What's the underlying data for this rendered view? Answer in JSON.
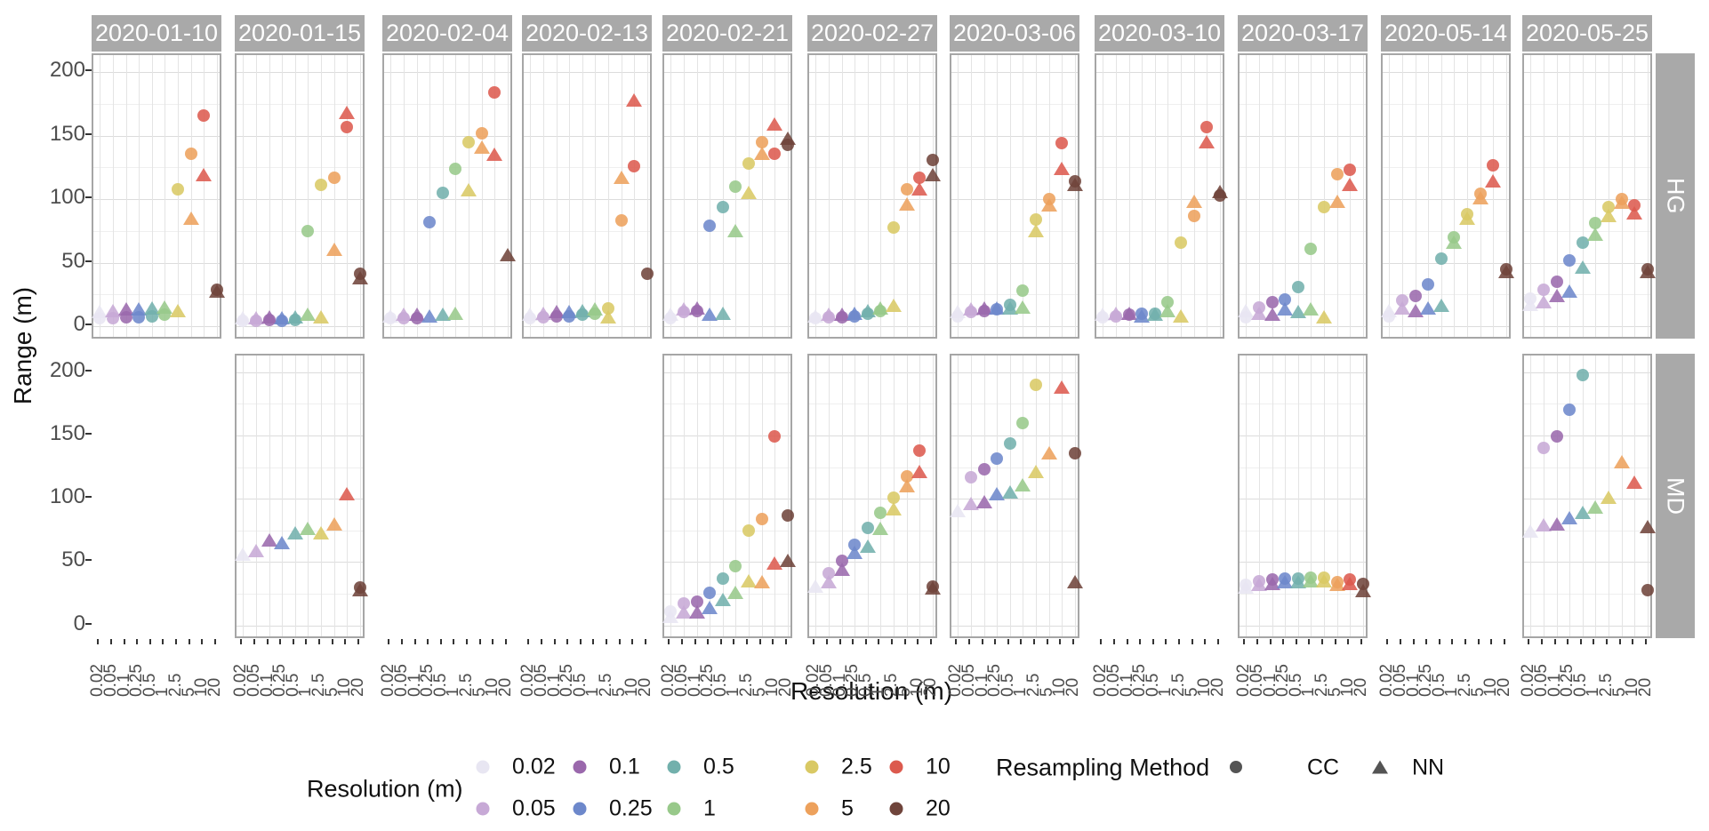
{
  "chart_data": {
    "type": "scatter",
    "x_axis": {
      "label": "Resolution (m)",
      "categories": [
        "0.02",
        "0.05",
        "0.1",
        "0.25",
        "0.5",
        "1",
        "2.5",
        "5",
        "10",
        "20"
      ]
    },
    "y_axis": {
      "label": "Range (m)",
      "ticks": [
        0,
        50,
        100,
        150,
        200
      ],
      "min": 0,
      "max": 210,
      "minor_step": 25,
      "grid": true
    },
    "row_facets": [
      "HG",
      "MD"
    ],
    "col_facets": [
      "2020-01-10",
      "2020-01-15",
      "2020-02-04",
      "2020-02-13",
      "2020-02-21",
      "2020-02-27",
      "2020-03-06",
      "2020-03-10",
      "2020-03-17",
      "2020-05-14",
      "2020-05-25"
    ],
    "resolution_colors": {
      "0.02": "#e8e6f2",
      "0.05": "#c7a9d6",
      "0.1": "#9a68ac",
      "0.25": "#6d88cb",
      "0.5": "#72b0ac",
      "1": "#98c98a",
      "2.5": "#d9c964",
      "5": "#eda15c",
      "10": "#dc5a4e",
      "20": "#6f443b"
    },
    "legend": {
      "resolution_title": "Resolution (m)",
      "resolution_items": [
        "0.02",
        "0.05",
        "0.1",
        "0.25",
        "0.5",
        "1",
        "2.5",
        "5",
        "10",
        "20"
      ],
      "method_title": "Resampling Method",
      "method_items": [
        {
          "label": "CC",
          "shape": "circle"
        },
        {
          "label": "NN",
          "shape": "triangle"
        }
      ],
      "method_color": "#545454"
    },
    "facets": [
      {
        "row": "HG",
        "col": "2020-01-10",
        "points": [
          {
            "res": "0.02",
            "cc": 6,
            "nn": 11
          },
          {
            "res": "0.05",
            "cc": 6,
            "nn": 12
          },
          {
            "res": "0.1",
            "cc": 7,
            "nn": 13
          },
          {
            "res": "0.25",
            "cc": 7,
            "nn": 13
          },
          {
            "res": "0.5",
            "cc": 8,
            "nn": 14
          },
          {
            "res": "1",
            "cc": 9,
            "nn": 15
          },
          {
            "res": "2.5",
            "cc": 108,
            "nn": 12
          },
          {
            "res": "5",
            "cc": 136,
            "nn": 85
          },
          {
            "res": "10",
            "cc": 166,
            "nn": 119
          },
          {
            "res": "20",
            "cc": 29,
            "nn": 27
          }
        ]
      },
      {
        "row": "HG",
        "col": "2020-01-15",
        "points": [
          {
            "res": "0.02",
            "cc": 4,
            "nn": 6
          },
          {
            "res": "0.05",
            "cc": 4,
            "nn": 6
          },
          {
            "res": "0.1",
            "cc": 5,
            "nn": 7
          },
          {
            "res": "0.25",
            "cc": 4,
            "nn": 6
          },
          {
            "res": "0.5",
            "cc": 5,
            "nn": 7
          },
          {
            "res": "1",
            "cc": 75,
            "nn": 9
          },
          {
            "res": "2.5",
            "cc": 111,
            "nn": 7
          },
          {
            "res": "5",
            "cc": 117,
            "nn": 60
          },
          {
            "res": "10",
            "cc": 157,
            "nn": 168
          },
          {
            "res": "20",
            "cc": 41,
            "nn": 38
          }
        ]
      },
      {
        "row": "HG",
        "col": "2020-02-04",
        "points": [
          {
            "res": "0.02",
            "cc": 6,
            "nn": 8
          },
          {
            "res": "0.05",
            "cc": 6,
            "nn": 9
          },
          {
            "res": "0.1",
            "cc": 6,
            "nn": 9
          },
          {
            "res": "0.25",
            "cc": 82,
            "nn": 8
          },
          {
            "res": "0.5",
            "cc": 105,
            "nn": 9
          },
          {
            "res": "1",
            "cc": 124,
            "nn": 10
          },
          {
            "res": "2.5",
            "cc": 145,
            "nn": 107
          },
          {
            "res": "5",
            "cc": 152,
            "nn": 141
          },
          {
            "res": "10",
            "cc": 184,
            "nn": 135
          },
          {
            "res": "20",
            "cc": null,
            "nn": 56
          }
        ]
      },
      {
        "row": "HG",
        "col": "2020-02-13",
        "points": [
          {
            "res": "0.02",
            "cc": 6,
            "nn": 9
          },
          {
            "res": "0.05",
            "cc": 7,
            "nn": 10
          },
          {
            "res": "0.1",
            "cc": 8,
            "nn": 11
          },
          {
            "res": "0.25",
            "cc": 8,
            "nn": 11
          },
          {
            "res": "0.5",
            "cc": 9,
            "nn": 12
          },
          {
            "res": "1",
            "cc": 10,
            "nn": 13
          },
          {
            "res": "2.5",
            "cc": 14,
            "nn": 7
          },
          {
            "res": "5",
            "cc": 83,
            "nn": 117
          },
          {
            "res": "10",
            "cc": 126,
            "nn": 178
          },
          {
            "res": "20",
            "cc": 41,
            "nn": null
          }
        ]
      },
      {
        "row": "HG",
        "col": "2020-02-21",
        "points": [
          {
            "res": "0.02",
            "cc": 6,
            "nn": 9
          },
          {
            "res": "0.05",
            "cc": 11,
            "nn": 13
          },
          {
            "res": "0.1",
            "cc": 12,
            "nn": 14
          },
          {
            "res": "0.25",
            "cc": 79,
            "nn": 9
          },
          {
            "res": "0.5",
            "cc": 94,
            "nn": 10
          },
          {
            "res": "1",
            "cc": 110,
            "nn": 75
          },
          {
            "res": "2.5",
            "cc": 128,
            "nn": 105
          },
          {
            "res": "5",
            "cc": 145,
            "nn": 136
          },
          {
            "res": "10",
            "cc": 136,
            "nn": 159
          },
          {
            "res": "20",
            "cc": 143,
            "nn": 148
          }
        ]
      },
      {
        "row": "HG",
        "col": "2020-02-27",
        "points": [
          {
            "res": "0.02",
            "cc": 6,
            "nn": 8
          },
          {
            "res": "0.05",
            "cc": 7,
            "nn": 9
          },
          {
            "res": "0.1",
            "cc": 7,
            "nn": 9
          },
          {
            "res": "0.25",
            "cc": 8,
            "nn": 10
          },
          {
            "res": "0.5",
            "cc": 10,
            "nn": 12
          },
          {
            "res": "1",
            "cc": 12,
            "nn": 14
          },
          {
            "res": "2.5",
            "cc": 78,
            "nn": 16
          },
          {
            "res": "5",
            "cc": 108,
            "nn": 96
          },
          {
            "res": "10",
            "cc": 117,
            "nn": 108
          },
          {
            "res": "20",
            "cc": 131,
            "nn": 119
          }
        ]
      },
      {
        "row": "HG",
        "col": "2020-03-06",
        "points": [
          {
            "res": "0.02",
            "cc": 8,
            "nn": 11
          },
          {
            "res": "0.05",
            "cc": 11,
            "nn": 13
          },
          {
            "res": "0.1",
            "cc": 12,
            "nn": 14
          },
          {
            "res": "0.25",
            "cc": 13,
            "nn": 14
          },
          {
            "res": "0.5",
            "cc": 17,
            "nn": 14
          },
          {
            "res": "1",
            "cc": 28,
            "nn": 15
          },
          {
            "res": "2.5",
            "cc": 84,
            "nn": 75
          },
          {
            "res": "5",
            "cc": 100,
            "nn": 95
          },
          {
            "res": "10",
            "cc": 144,
            "nn": 124
          },
          {
            "res": "20",
            "cc": 114,
            "nn": 111
          }
        ]
      },
      {
        "row": "HG",
        "col": "2020-03-10",
        "points": [
          {
            "res": "0.02",
            "cc": 7,
            "nn": 9
          },
          {
            "res": "0.05",
            "cc": 8,
            "nn": 10
          },
          {
            "res": "0.1",
            "cc": 9,
            "nn": 10
          },
          {
            "res": "0.25",
            "cc": 10,
            "nn": 8
          },
          {
            "res": "0.5",
            "cc": 10,
            "nn": 9
          },
          {
            "res": "1",
            "cc": 19,
            "nn": 12
          },
          {
            "res": "2.5",
            "cc": 66,
            "nn": 8
          },
          {
            "res": "5",
            "cc": 87,
            "nn": 98
          },
          {
            "res": "10",
            "cc": 157,
            "nn": 145
          },
          {
            "res": "20",
            "cc": 103,
            "nn": 106
          }
        ]
      },
      {
        "row": "HG",
        "col": "2020-03-17",
        "points": [
          {
            "res": "0.02",
            "cc": 7,
            "nn": 12
          },
          {
            "res": "0.05",
            "cc": 15,
            "nn": 10
          },
          {
            "res": "0.1",
            "cc": 19,
            "nn": 9
          },
          {
            "res": "0.25",
            "cc": 21,
            "nn": 13
          },
          {
            "res": "0.5",
            "cc": 31,
            "nn": 11
          },
          {
            "res": "1",
            "cc": 61,
            "nn": 13
          },
          {
            "res": "2.5",
            "cc": 94,
            "nn": 7
          },
          {
            "res": "5",
            "cc": 120,
            "nn": 98
          },
          {
            "res": "10",
            "cc": 123,
            "nn": 111
          }
        ]
      },
      {
        "row": "HG",
        "col": "2020-05-14",
        "points": [
          {
            "res": "0.02",
            "cc": 8,
            "nn": 12
          },
          {
            "res": "0.05",
            "cc": 20,
            "nn": 14
          },
          {
            "res": "0.1",
            "cc": 24,
            "nn": 12
          },
          {
            "res": "0.25",
            "cc": 33,
            "nn": 14
          },
          {
            "res": "0.5",
            "cc": 53,
            "nn": 16
          },
          {
            "res": "1",
            "cc": 70,
            "nn": 66
          },
          {
            "res": "2.5",
            "cc": 88,
            "nn": 85
          },
          {
            "res": "5",
            "cc": 104,
            "nn": 101
          },
          {
            "res": "10",
            "cc": 127,
            "nn": 114
          },
          {
            "res": "20",
            "cc": 45,
            "nn": 43
          }
        ]
      },
      {
        "row": "HG",
        "col": "2020-05-25",
        "points": [
          {
            "res": "0.02",
            "cc": 22,
            "nn": 17
          },
          {
            "res": "0.05",
            "cc": 29,
            "nn": 19
          },
          {
            "res": "0.1",
            "cc": 35,
            "nn": 24
          },
          {
            "res": "0.25",
            "cc": 52,
            "nn": 27
          },
          {
            "res": "0.5",
            "cc": 66,
            "nn": 46
          },
          {
            "res": "1",
            "cc": 81,
            "nn": 72
          },
          {
            "res": "2.5",
            "cc": 94,
            "nn": 87
          },
          {
            "res": "5",
            "cc": 100,
            "nn": 97
          },
          {
            "res": "10",
            "cc": 95,
            "nn": 89
          },
          {
            "res": "20",
            "cc": 45,
            "nn": 43
          }
        ]
      },
      {
        "row": "MD",
        "col": "2020-01-15",
        "points": [
          {
            "res": "0.02",
            "cc": null,
            "nn": 56
          },
          {
            "res": "0.05",
            "cc": null,
            "nn": 59
          },
          {
            "res": "0.1",
            "cc": null,
            "nn": 67
          },
          {
            "res": "0.25",
            "cc": null,
            "nn": 65
          },
          {
            "res": "0.5",
            "cc": null,
            "nn": 73
          },
          {
            "res": "1",
            "cc": null,
            "nn": 76
          },
          {
            "res": "2.5",
            "cc": null,
            "nn": 73
          },
          {
            "res": "5",
            "cc": null,
            "nn": 80
          },
          {
            "res": "10",
            "cc": null,
            "nn": 104
          },
          {
            "res": "20",
            "cc": 30,
            "nn": 28
          }
        ]
      },
      {
        "row": "MD",
        "col": "2020-02-21",
        "points": [
          {
            "res": "0.02",
            "cc": 11,
            "nn": 7
          },
          {
            "res": "0.05",
            "cc": 17,
            "nn": 10
          },
          {
            "res": "0.1",
            "cc": 19,
            "nn": 10
          },
          {
            "res": "0.25",
            "cc": 26,
            "nn": 14
          },
          {
            "res": "0.5",
            "cc": 37,
            "nn": 20
          },
          {
            "res": "1",
            "cc": 47,
            "nn": 26
          },
          {
            "res": "2.5",
            "cc": 75,
            "nn": 35
          },
          {
            "res": "5",
            "cc": 84,
            "nn": 34
          },
          {
            "res": "10",
            "cc": 149,
            "nn": 49
          },
          {
            "res": "20",
            "cc": 87,
            "nn": 51
          }
        ]
      },
      {
        "row": "MD",
        "col": "2020-02-27",
        "points": [
          {
            "res": "0.02",
            "cc": null,
            "nn": 31
          },
          {
            "res": "0.05",
            "cc": 41,
            "nn": 34
          },
          {
            "res": "0.1",
            "cc": 51,
            "nn": 44
          },
          {
            "res": "0.25",
            "cc": 64,
            "nn": 57
          },
          {
            "res": "0.5",
            "cc": 77,
            "nn": 62
          },
          {
            "res": "1",
            "cc": 89,
            "nn": 76
          },
          {
            "res": "2.5",
            "cc": 101,
            "nn": 92
          },
          {
            "res": "5",
            "cc": 118,
            "nn": 110
          },
          {
            "res": "10",
            "cc": 138,
            "nn": 121
          },
          {
            "res": "20",
            "cc": 31,
            "nn": 29
          }
        ]
      },
      {
        "row": "MD",
        "col": "2020-03-06",
        "points": [
          {
            "res": "0.02",
            "cc": null,
            "nn": 90
          },
          {
            "res": "0.05",
            "cc": 117,
            "nn": 96
          },
          {
            "res": "0.1",
            "cc": 123,
            "nn": 97
          },
          {
            "res": "0.25",
            "cc": 132,
            "nn": 104
          },
          {
            "res": "0.5",
            "cc": 144,
            "nn": 105
          },
          {
            "res": "1",
            "cc": 160,
            "nn": 111
          },
          {
            "res": "2.5",
            "cc": 190,
            "nn": 121
          },
          {
            "res": "5",
            "cc": null,
            "nn": 136
          },
          {
            "res": "10",
            "cc": null,
            "nn": 188
          },
          {
            "res": "20",
            "cc": 136,
            "nn": 34
          }
        ]
      },
      {
        "row": "MD",
        "col": "2020-03-17",
        "points": [
          {
            "res": "0.02",
            "cc": 32,
            "nn": 30
          },
          {
            "res": "0.05",
            "cc": 35,
            "nn": 32
          },
          {
            "res": "0.1",
            "cc": 36,
            "nn": 33
          },
          {
            "res": "0.25",
            "cc": 37,
            "nn": 34
          },
          {
            "res": "0.5",
            "cc": 37,
            "nn": 34
          },
          {
            "res": "1",
            "cc": 38,
            "nn": 35
          },
          {
            "res": "2.5",
            "cc": 38,
            "nn": 35
          },
          {
            "res": "5",
            "cc": 34,
            "nn": 32
          },
          {
            "res": "10",
            "cc": 36,
            "nn": 33
          },
          {
            "res": "20",
            "cc": 33,
            "nn": 27
          }
        ]
      },
      {
        "row": "MD",
        "col": "2020-05-25",
        "points": [
          {
            "res": "0.02",
            "cc": null,
            "nn": 74
          },
          {
            "res": "0.05",
            "cc": 140,
            "nn": 79
          },
          {
            "res": "0.1",
            "cc": 149,
            "nn": 80
          },
          {
            "res": "0.25",
            "cc": 170,
            "nn": 85
          },
          {
            "res": "0.5",
            "cc": 198,
            "nn": 89
          },
          {
            "res": "1",
            "cc": null,
            "nn": 93
          },
          {
            "res": "2.5",
            "cc": null,
            "nn": 101
          },
          {
            "res": "5",
            "cc": null,
            "nn": 129
          },
          {
            "res": "10",
            "cc": null,
            "nn": 113
          },
          {
            "res": "20",
            "cc": 28,
            "nn": 78
          }
        ]
      }
    ]
  }
}
